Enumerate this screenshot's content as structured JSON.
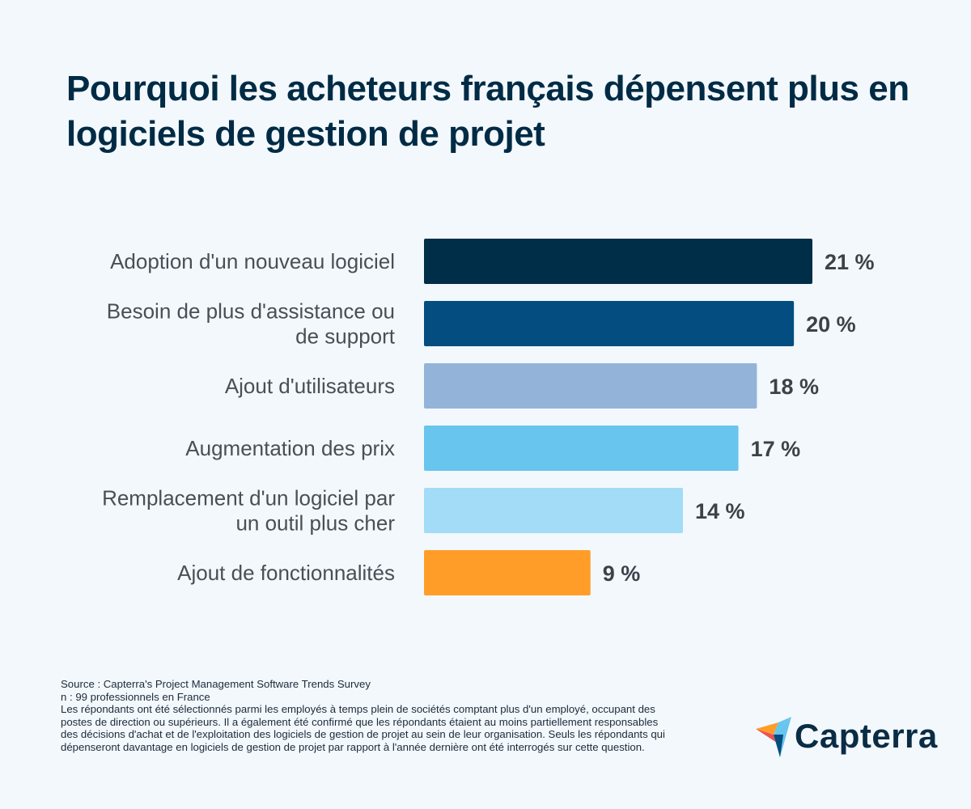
{
  "chart_data": {
    "type": "bar",
    "orientation": "horizontal",
    "title": "Pourquoi les acheteurs français dépensent plus en logiciels de gestion de projet",
    "categories": [
      [
        "Adoption d'un nouveau logiciel"
      ],
      [
        "Besoin de plus d'assistance ou",
        "de support"
      ],
      [
        "Ajout d'utilisateurs"
      ],
      [
        "Augmentation des prix"
      ],
      [
        "Remplacement d'un logiciel par",
        "un outil plus cher"
      ],
      [
        "Ajout de fonctionnalités"
      ]
    ],
    "values": [
      21,
      20,
      18,
      17,
      14,
      9
    ],
    "value_labels": [
      "21 %",
      "20 %",
      "18 %",
      "17 %",
      "14 %",
      "9 %"
    ],
    "colors": [
      "#002d47",
      "#044d80",
      "#94b3d9",
      "#67c5ee",
      "#a2dcf7",
      "#ff9d28"
    ],
    "xlim": [
      0,
      21
    ],
    "grid": false,
    "unit": "%"
  },
  "footer": {
    "source": "Source : Capterra's Project Management Software Trends Survey",
    "sample": "n : 99 professionnels en France",
    "methodology": "Les répondants ont été sélectionnés parmi les employés à temps plein de sociétés comptant plus d'un employé, occupant des postes de direction ou supérieurs. Il a également été confirmé que les répondants étaient au moins partiellement responsables des décisions d'achat et de l'exploitation des logiciels de gestion de projet au sein de leur organisation. Seuls les répondants qui dépenseront davantage en logiciels de gestion de projet par rapport à l'année dernière ont été interrogés sur cette question."
  },
  "logo": {
    "text": "Capterra"
  }
}
